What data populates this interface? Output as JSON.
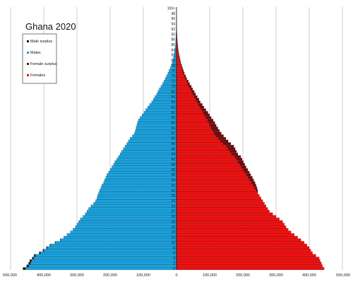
{
  "chart_data": {
    "type": "bar",
    "orientation": "horizontal-pyramid",
    "title": "Ghana 2020",
    "x_ticks": [
      "500,000",
      "400,000",
      "300,000",
      "200,000",
      "100,000",
      "0",
      "100,000",
      "200,000",
      "300,000",
      "400,000",
      "500,000"
    ],
    "xlim": [
      -500000,
      500000
    ],
    "grid": true,
    "legend_position": "top-left",
    "legend": [
      "Male surplus",
      "Males",
      "Female surplus",
      "Females"
    ],
    "colors": {
      "male_surplus": "#1a1a1a",
      "males": "#1ba1dc",
      "female_surplus": "#6b0d0d",
      "females": "#ee1111"
    },
    "age_labels": [
      "0",
      "2",
      "4",
      "6",
      "8",
      "10",
      "12",
      "14",
      "16",
      "18",
      "20",
      "22",
      "24",
      "26",
      "28",
      "30",
      "32",
      "34",
      "36",
      "38",
      "40",
      "42",
      "44",
      "46",
      "48",
      "50",
      "52",
      "54",
      "56",
      "58",
      "60",
      "62",
      "64",
      "66",
      "68",
      "70",
      "72",
      "74",
      "76",
      "78",
      "80",
      "82",
      "84",
      "86",
      "88",
      "90",
      "92",
      "94",
      "96",
      "98",
      "100+"
    ],
    "males": [
      455000,
      445000,
      440000,
      437000,
      430000,
      425000,
      410000,
      400000,
      390000,
      380000,
      365000,
      350000,
      340000,
      330000,
      320000,
      312000,
      305000,
      300000,
      295000,
      290000,
      282000,
      275000,
      270000,
      265000,
      258000,
      250000,
      244000,
      240000,
      238000,
      235000,
      232000,
      228000,
      225000,
      220000,
      217000,
      213000,
      210000,
      205000,
      200000,
      195000,
      190000,
      186000,
      180000,
      175000,
      170000,
      166000,
      160000,
      155000,
      150000,
      145000,
      140000,
      133000,
      127000,
      124000,
      122000,
      120000,
      118000,
      115000,
      110000,
      104000,
      98000,
      93000,
      87000,
      81000,
      75000,
      70000,
      65000,
      60000,
      56000,
      52000,
      47000,
      42000,
      38000,
      34000,
      30000,
      26000,
      23000,
      19000,
      16000,
      13000,
      11000,
      9000,
      7500,
      6000,
      5000,
      4000,
      3000,
      2500,
      2000,
      1500,
      1200,
      1000,
      800,
      600,
      450,
      350,
      250,
      180,
      120,
      80,
      50
    ],
    "females": [
      445000,
      440000,
      437000,
      433000,
      430000,
      420000,
      410000,
      405000,
      400000,
      393000,
      385000,
      375000,
      365000,
      355000,
      345000,
      337000,
      330000,
      325000,
      320000,
      310000,
      300000,
      290000,
      280000,
      275000,
      270000,
      265000,
      260000,
      255000,
      250000,
      245000,
      240000,
      235000,
      230000,
      225000,
      220000,
      215000,
      210000,
      205000,
      200000,
      195000,
      190000,
      185000,
      180000,
      175000,
      165000,
      160000,
      155000,
      150000,
      140000,
      132000,
      125000,
      118000,
      112000,
      108000,
      104000,
      100000,
      97000,
      93000,
      88000,
      84000,
      80000,
      75000,
      70000,
      66000,
      61000,
      57000,
      53000,
      49000,
      45000,
      41000,
      37000,
      33000,
      30000,
      26000,
      23000,
      20000,
      17500,
      15000,
      13000,
      11000,
      9500,
      8000,
      6500,
      5500,
      4500,
      3800,
      3100,
      2500,
      2000,
      1500,
      1200,
      1000,
      800,
      600,
      450,
      350,
      250,
      180,
      120,
      80,
      50
    ],
    "female_surplus": [
      0,
      0,
      0,
      0,
      0,
      0,
      0,
      0,
      0,
      0,
      0,
      0,
      0,
      0,
      0,
      0,
      0,
      0,
      0,
      0,
      0,
      0,
      0,
      0,
      0,
      0,
      0,
      0,
      0,
      0,
      5000,
      8000,
      10000,
      12000,
      13000,
      14000,
      14000,
      15000,
      15000,
      15000,
      16000,
      17000,
      18000,
      19000,
      20000,
      21000,
      22000,
      23000,
      24000,
      24000,
      24000,
      24000,
      23000,
      22000,
      21000,
      20000,
      19000,
      18000,
      17000,
      16000,
      15000,
      14000,
      13000,
      12000,
      11000,
      11000,
      10000,
      9000,
      9000,
      8000,
      8000,
      7000,
      6000,
      5000,
      5000,
      4000,
      4000,
      3500,
      3000,
      2500,
      2200,
      2000,
      1800,
      1500,
      1200,
      1000,
      800,
      600,
      500,
      400,
      300,
      200,
      150,
      100,
      80,
      60,
      40,
      30,
      20,
      10,
      5
    ],
    "male_surplus": [
      8000,
      7000,
      6000,
      5500,
      5000,
      4500,
      4000,
      3000,
      2500,
      2000,
      1500,
      1000,
      0,
      0,
      0,
      0,
      0,
      0,
      0,
      0,
      0,
      0,
      0,
      0,
      0,
      0,
      0,
      0,
      0,
      0,
      0,
      0,
      0,
      0,
      0,
      0,
      0,
      0,
      0,
      0,
      0,
      0,
      0,
      0,
      0,
      0,
      0,
      0,
      0,
      0,
      0,
      0,
      0,
      0,
      0,
      0,
      0,
      0,
      0,
      0,
      0,
      0,
      0,
      0,
      0,
      0,
      0,
      0,
      0,
      0,
      0,
      0,
      0,
      0,
      0,
      0,
      0,
      0,
      0,
      0,
      0,
      0,
      0,
      0,
      0,
      0,
      0,
      0,
      0,
      0,
      0,
      0,
      0,
      0,
      0,
      0,
      0,
      0,
      0,
      0,
      0
    ]
  }
}
